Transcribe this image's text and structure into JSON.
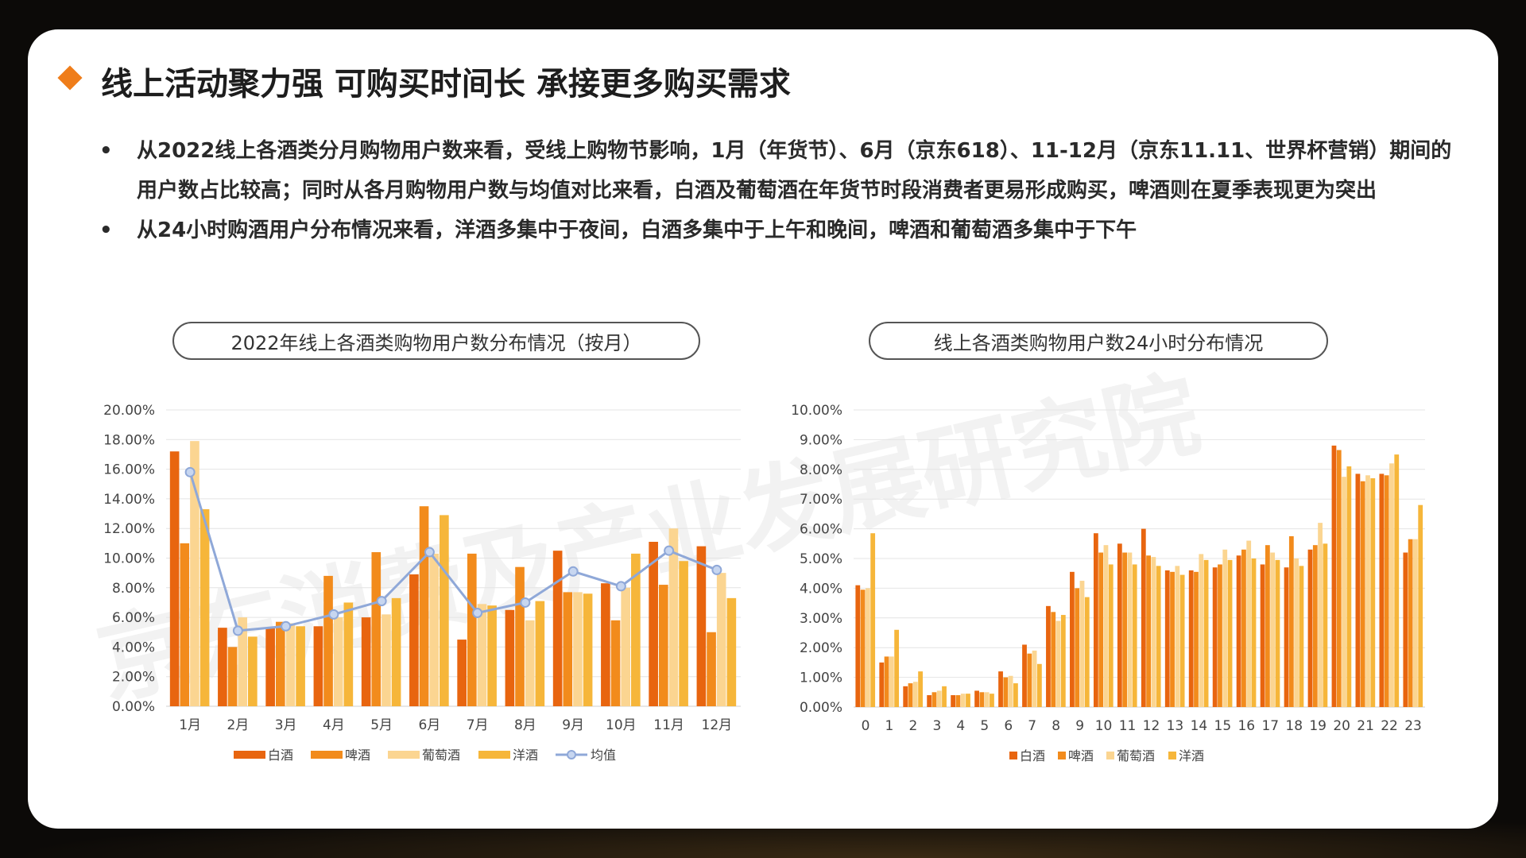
{
  "title": "线上活动聚力强 可购买时间长 承接更多购买需求",
  "bullets": [
    "从2022线上各酒类分月购物用户数来看，受线上购物节影响，1月（年货节）、6月（京东618）、11-12月（京东11.11、世界杯营销）期间的用户数占比较高；同时从各月购物用户数与均值对比来看，白酒及葡萄酒在年货节时段消费者更易形成购买，啤酒则在夏季表现更为突出",
    "从24小时购酒用户分布情况来看，洋酒多集中于夜间，白酒多集中于上午和晚间，啤酒和葡萄酒多集中于下午"
  ],
  "watermark": "京东消费及产业发展研究院",
  "chart_titles": [
    "2022年线上各酒类购物用户数分布情况（按月）",
    "线上各酒类购物用户数24小时分布情况"
  ],
  "colors": {
    "bai": "#e8650f",
    "pi": "#f28b1c",
    "putao": "#fbd591",
    "yang": "#f6b63a",
    "avg": "#8fa8d8",
    "avgFill": "#c7d6f0",
    "grid": "#e4e4e4",
    "axis": "#cfcfcf"
  },
  "chart_data": [
    {
      "type": "bar",
      "title": "2022年线上各酒类购物用户数分布情况（按月）",
      "categories": [
        "1月",
        "2月",
        "3月",
        "4月",
        "5月",
        "6月",
        "7月",
        "8月",
        "9月",
        "10月",
        "11月",
        "12月"
      ],
      "ylim": [
        0,
        20
      ],
      "yticks": [
        "0.00%",
        "2.00%",
        "4.00%",
        "6.00%",
        "8.00%",
        "10.00%",
        "12.00%",
        "14.00%",
        "16.00%",
        "18.00%",
        "20.00%"
      ],
      "series": [
        {
          "name": "白酒",
          "values": [
            17.2,
            5.3,
            5.3,
            5.4,
            6.0,
            8.9,
            4.5,
            6.5,
            10.5,
            8.3,
            11.1,
            10.8
          ]
        },
        {
          "name": "啤酒",
          "values": [
            11.0,
            4.0,
            5.7,
            8.8,
            10.4,
            13.5,
            10.3,
            9.4,
            7.7,
            5.8,
            8.2,
            5.0
          ]
        },
        {
          "name": "葡萄酒",
          "values": [
            17.9,
            6.0,
            5.6,
            6.0,
            6.2,
            10.3,
            6.9,
            5.8,
            7.7,
            8.0,
            12.0,
            9.0
          ]
        },
        {
          "name": "洋酒",
          "values": [
            13.3,
            4.7,
            5.4,
            7.0,
            7.3,
            12.9,
            6.8,
            7.1,
            7.6,
            10.3,
            9.8,
            7.3
          ]
        }
      ],
      "line": {
        "name": "均值",
        "values": [
          15.8,
          5.1,
          5.4,
          6.2,
          7.1,
          10.4,
          6.3,
          7.0,
          9.1,
          8.1,
          10.5,
          9.2
        ]
      },
      "legend": "bottom"
    },
    {
      "type": "bar",
      "title": "线上各酒类购物用户数24小时分布情况",
      "categories": [
        "0",
        "1",
        "2",
        "3",
        "4",
        "5",
        "6",
        "7",
        "8",
        "9",
        "10",
        "11",
        "12",
        "13",
        "14",
        "15",
        "16",
        "17",
        "18",
        "19",
        "20",
        "21",
        "22",
        "23"
      ],
      "ylim": [
        0,
        10
      ],
      "yticks": [
        "0.00%",
        "1.00%",
        "2.00%",
        "3.00%",
        "4.00%",
        "5.00%",
        "6.00%",
        "7.00%",
        "8.00%",
        "9.00%",
        "10.00%"
      ],
      "series": [
        {
          "name": "白酒",
          "values": [
            4.1,
            1.5,
            0.7,
            0.4,
            0.4,
            0.55,
            1.2,
            2.1,
            3.4,
            4.55,
            5.85,
            5.5,
            6.0,
            4.6,
            4.6,
            4.7,
            5.1,
            4.8,
            4.7,
            5.3,
            8.8,
            7.85,
            7.85,
            5.2
          ]
        },
        {
          "name": "啤酒",
          "values": [
            3.95,
            1.7,
            0.8,
            0.5,
            0.4,
            0.5,
            1.0,
            1.8,
            3.2,
            4.0,
            5.2,
            5.2,
            5.1,
            4.55,
            4.55,
            4.8,
            5.3,
            5.45,
            5.75,
            5.45,
            8.65,
            7.6,
            7.8,
            5.65
          ]
        },
        {
          "name": "葡萄酒",
          "values": [
            4.0,
            1.7,
            0.85,
            0.55,
            0.45,
            0.5,
            1.05,
            1.9,
            2.9,
            4.25,
            5.45,
            5.2,
            5.05,
            4.75,
            5.15,
            5.3,
            5.6,
            5.2,
            5.0,
            6.2,
            7.75,
            7.8,
            8.2,
            5.65
          ]
        },
        {
          "name": "洋酒",
          "values": [
            5.85,
            2.6,
            1.2,
            0.7,
            0.45,
            0.45,
            0.8,
            1.45,
            3.1,
            3.7,
            4.8,
            4.8,
            4.75,
            4.45,
            4.95,
            4.95,
            5.0,
            4.95,
            4.75,
            5.5,
            8.1,
            7.7,
            8.5,
            6.8
          ]
        }
      ],
      "legend": "bottom"
    }
  ]
}
